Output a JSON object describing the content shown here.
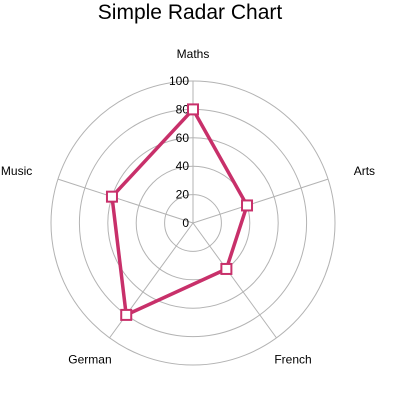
{
  "chart_data": {
    "type": "radar",
    "title": "Simple Radar Chart",
    "axes": [
      "Maths",
      "Arts",
      "French",
      "German",
      "Music"
    ],
    "values": [
      80,
      40,
      40,
      80,
      60
    ],
    "rlim": [
      0,
      100
    ],
    "ticks": [
      0,
      20,
      40,
      60,
      80,
      100
    ],
    "ticks_labels": [
      "0",
      "20",
      "40",
      "60",
      "80",
      "100"
    ],
    "grid": true,
    "line_color": "#c8306a",
    "marker_fill": "#ffffff",
    "grid_color": "#b3b3b3"
  }
}
